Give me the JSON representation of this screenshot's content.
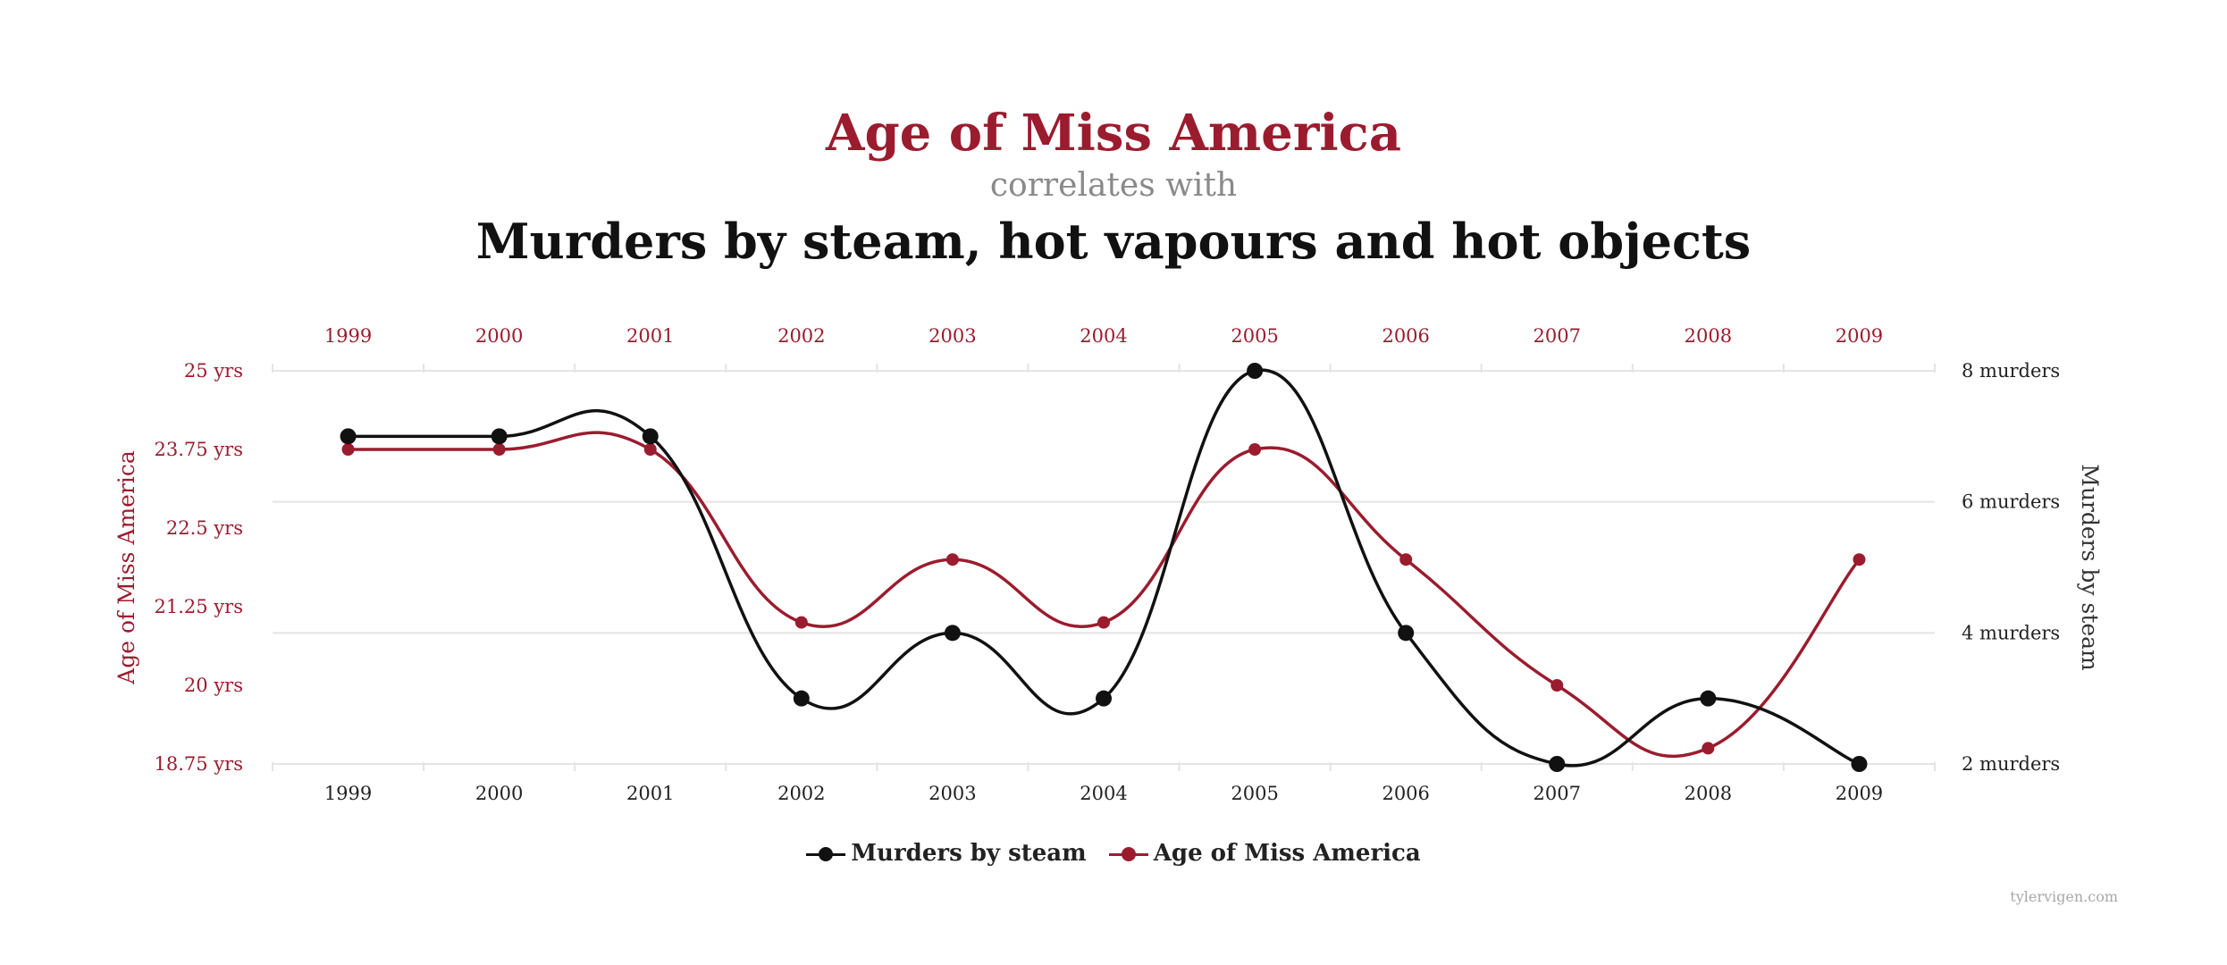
{
  "header": {
    "title": "Age of Miss America",
    "connector": "correlates with",
    "subtitle": "Murders by steam, hot vapours and hot objects"
  },
  "footer": {
    "watermark": "tylervigen.com"
  },
  "colors": {
    "age": "#9b1c2e",
    "murders": "#111111",
    "grid": "#e4e4e4"
  },
  "chart_data": {
    "type": "line",
    "x": [
      1999,
      2000,
      2001,
      2002,
      2003,
      2004,
      2005,
      2006,
      2007,
      2008,
      2009
    ],
    "x_tick_labels": [
      "1999",
      "2000",
      "2001",
      "2002",
      "2003",
      "2004",
      "2005",
      "2006",
      "2007",
      "2008",
      "2009"
    ],
    "x_labels_top_and_bottom": true,
    "series": [
      {
        "name": "Murders by steam",
        "axis": "right",
        "color": "#111111",
        "values": [
          7,
          7,
          7,
          3,
          4,
          3,
          8,
          4,
          2,
          3,
          2
        ]
      },
      {
        "name": "Age of Miss America",
        "axis": "left",
        "color": "#9b1c2e",
        "values": [
          23.75,
          23.75,
          23.75,
          21,
          22,
          21,
          23.75,
          22,
          20,
          19,
          22
        ]
      }
    ],
    "left_axis": {
      "label": "Age of Miss America",
      "range": [
        18.75,
        25
      ],
      "ticks": [
        18.75,
        20,
        21.25,
        22.5,
        23.75,
        25
      ],
      "tick_labels": [
        "18.75 yrs",
        "20 yrs",
        "21.25 yrs",
        "22.5 yrs",
        "23.75 yrs",
        "25 yrs"
      ]
    },
    "right_axis": {
      "label": "Murders by steam",
      "range": [
        2,
        8
      ],
      "ticks": [
        2,
        4,
        6,
        8
      ],
      "tick_labels": [
        "2 murders",
        "4 murders",
        "6 murders",
        "8 murders"
      ]
    },
    "grid": true,
    "legend_position": "bottom-center",
    "curve": "smooth"
  }
}
